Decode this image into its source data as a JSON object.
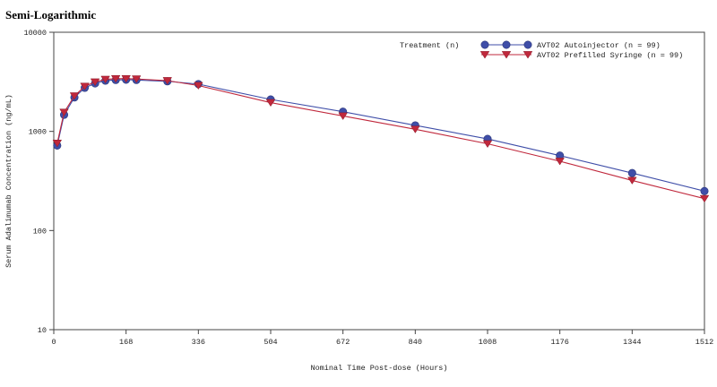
{
  "page": {
    "title": "Semi-Logarithmic"
  },
  "chart_data": {
    "type": "line",
    "title": "",
    "xlabel": "Nominal Time Post-dose (Hours)",
    "ylabel": "Serum Adalimumab Concentration (ng/mL)",
    "xlim": [
      0,
      1512
    ],
    "ylim": [
      10,
      10000
    ],
    "yscale": "log",
    "x_ticks": [
      0,
      168,
      336,
      504,
      672,
      840,
      1008,
      1176,
      1344,
      1512
    ],
    "x_tick_labels": [
      "0",
      "168",
      "336",
      "504",
      "672",
      "840",
      "1008",
      "1176",
      "1344",
      "1512"
    ],
    "y_ticks": [
      10,
      100,
      1000,
      10000
    ],
    "y_tick_labels": [
      "10",
      "100",
      "1000",
      "10000"
    ],
    "grid": false,
    "legend": {
      "placement": "top-right",
      "title": "Treatment (n)"
    },
    "series": [
      {
        "name": "AVT02 Autoinjector (n = 99)",
        "color": "#3f4ea8",
        "marker": "circle",
        "x": [
          8,
          24,
          48,
          72,
          96,
          120,
          144,
          168,
          192,
          264,
          336,
          504,
          672,
          840,
          1008,
          1176,
          1344,
          1512
        ],
        "y": [
          720,
          1470,
          2200,
          2750,
          3050,
          3250,
          3300,
          3320,
          3300,
          3200,
          3000,
          2100,
          1580,
          1150,
          840,
          570,
          380,
          250
        ]
      },
      {
        "name": "AVT02 Prefilled Syringe (n = 99)",
        "color": "#c0283c",
        "marker": "triangle-down",
        "x": [
          8,
          24,
          48,
          72,
          96,
          120,
          144,
          168,
          192,
          264,
          336,
          504,
          672,
          840,
          1008,
          1176,
          1344,
          1512
        ],
        "y": [
          760,
          1560,
          2280,
          2850,
          3150,
          3350,
          3400,
          3400,
          3380,
          3250,
          2900,
          1950,
          1430,
          1050,
          750,
          500,
          320,
          210
        ]
      }
    ]
  }
}
